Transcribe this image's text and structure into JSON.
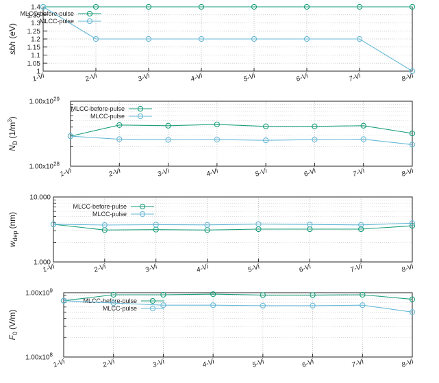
{
  "chart_data": [
    {
      "type": "line",
      "id": "sbh",
      "ylabel": "sbh (eV)",
      "ylabel_main": "sbh",
      "ylabel_sub": "",
      "ylabel_unit": "(eV)",
      "ylabel_italic": true,
      "ylim": [
        1,
        1.4
      ],
      "scale": "linear",
      "yticks": [
        "1",
        "1.05",
        "1.1",
        "1.15",
        "1.2",
        "1.25",
        "1.3",
        "1.35",
        "1.4"
      ],
      "ytick_values": [
        1,
        1.05,
        1.1,
        1.15,
        1.2,
        1.25,
        1.3,
        1.35,
        1.4
      ],
      "categories": [
        "1-Vi",
        "2-Vi",
        "3-Vi",
        "4-Vi",
        "5-Vi",
        "6-Vi",
        "7-Vi",
        "8-Vi"
      ],
      "legend_position": "top-left",
      "series": [
        {
          "name": "MLCC-before-pulse",
          "color": "#1a9e7a",
          "values": [
            1.4,
            1.4,
            1.4,
            1.4,
            1.4,
            1.4,
            1.4,
            1.4
          ]
        },
        {
          "name": "MLCC-pulse",
          "color": "#67b8d6",
          "values": [
            1.4,
            1.2,
            1.2,
            1.2,
            1.2,
            1.2,
            1.2,
            1.0
          ]
        }
      ]
    },
    {
      "type": "line",
      "id": "nd",
      "ylabel": "N_D (1/m^3)",
      "ylabel_main": "N",
      "ylabel_sub": "D",
      "ylabel_unit": "(1/m",
      "ylabel_sup": "3",
      "ylabel_close": ")",
      "ylim": [
        1e+28,
        1e+29
      ],
      "scale": "log",
      "yticks": [
        "1.00x10",
        "1.00x10"
      ],
      "ytick_exps": [
        "28",
        "29"
      ],
      "ytick_values": [
        1e+28,
        1e+29
      ],
      "categories": [
        "1-Vi",
        "2-Vi",
        "3-Vi",
        "4-Vi",
        "5-Vi",
        "6-Vi",
        "7-Vi",
        "8-Vi"
      ],
      "legend_position": "top-center",
      "series": [
        {
          "name": "MLCC-before-pulse",
          "color": "#1a9e7a",
          "values": [
            2.9e+28,
            4.3e+28,
            4.2e+28,
            4.4e+28,
            4.1e+28,
            4.1e+28,
            4.2e+28,
            3.2e+28
          ]
        },
        {
          "name": "MLCC-pulse",
          "color": "#67b8d6",
          "values": [
            2.9e+28,
            2.6e+28,
            2.55e+28,
            2.57e+28,
            2.5e+28,
            2.57e+28,
            2.6e+28,
            2.15e+28
          ]
        }
      ]
    },
    {
      "type": "line",
      "id": "wdep",
      "ylabel": "w dep (nm)",
      "ylabel_main": "w",
      "ylabel_sub": "dep",
      "ylabel_unit": "(nm)",
      "ylim": [
        1,
        10
      ],
      "scale": "log",
      "yticks": [
        "1.000",
        "10.000"
      ],
      "ytick_values": [
        1,
        10
      ],
      "categories": [
        "1-Vi",
        "2-Vi",
        "3-Vi",
        "4-Vi",
        "5-Vi",
        "6-Vi",
        "7-Vi",
        "8-Vi"
      ],
      "legend_position": "top-left",
      "series": [
        {
          "name": "MLCC-before-pulse",
          "color": "#1a9e7a",
          "values": [
            3.8,
            3.1,
            3.15,
            3.1,
            3.2,
            3.2,
            3.2,
            3.6
          ]
        },
        {
          "name": "MLCC-pulse",
          "color": "#67b8d6",
          "values": [
            3.8,
            3.7,
            3.75,
            3.72,
            3.82,
            3.77,
            3.72,
            3.95
          ]
        }
      ]
    },
    {
      "type": "line",
      "id": "f0",
      "ylabel": "F 0 (V/m)",
      "ylabel_main": "F",
      "ylabel_sub": "0",
      "ylabel_unit": "(V/m)",
      "ylim": [
        100000000.0,
        1000000000.0
      ],
      "scale": "log",
      "yticks": [
        "1.00x10",
        "1.00x10"
      ],
      "ytick_exps": [
        "8",
        "9"
      ],
      "ytick_values": [
        100000000.0,
        1000000000.0
      ],
      "categories": [
        "1-Vi",
        "2-Vi",
        "3-Vi",
        "4-Vi",
        "5-Vi",
        "6-Vi",
        "7-Vi",
        "8-Vi"
      ],
      "legend_position": "top-left",
      "series": [
        {
          "name": "MLCC-before-pulse",
          "color": "#1a9e7a",
          "values": [
            750000000.0,
            930000000.0,
            930000000.0,
            950000000.0,
            920000000.0,
            920000000.0,
            930000000.0,
            790000000.0
          ]
        },
        {
          "name": "MLCC-pulse",
          "color": "#67b8d6",
          "values": [
            750000000.0,
            690000000.0,
            640000000.0,
            640000000.0,
            630000000.0,
            630000000.0,
            640000000.0,
            500000000.0
          ]
        }
      ]
    }
  ]
}
